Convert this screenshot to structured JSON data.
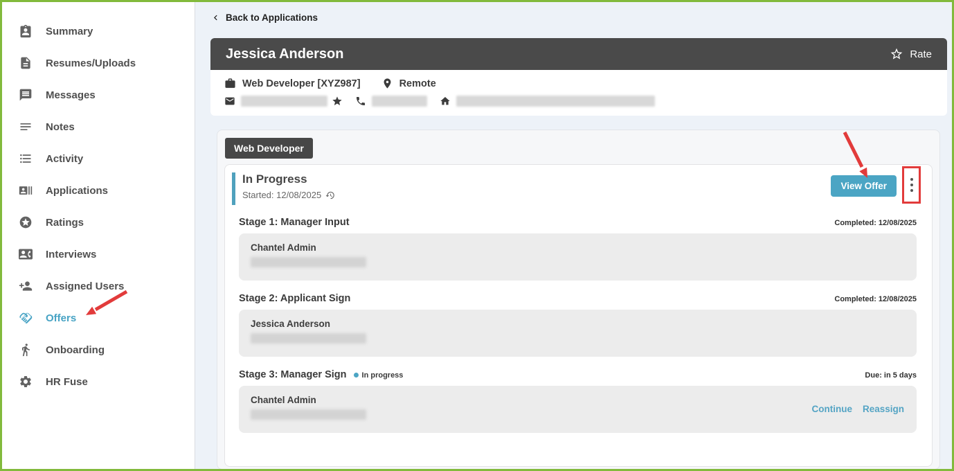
{
  "colors": {
    "accent": "#4BA5C4",
    "accent_text": "#47A3C4",
    "annotation_red": "#E23B3B",
    "header_dark": "#4A4A4A",
    "tab_dark": "#474747",
    "page_bg": "#EDF2F8",
    "frame_border": "#82BA3C"
  },
  "sidebar": {
    "items": [
      {
        "label": "Summary",
        "icon": "summary-icon",
        "active": false
      },
      {
        "label": "Resumes/Uploads",
        "icon": "resumes-icon",
        "active": false
      },
      {
        "label": "Messages",
        "icon": "messages-icon",
        "active": false
      },
      {
        "label": "Notes",
        "icon": "notes-icon",
        "active": false
      },
      {
        "label": "Activity",
        "icon": "activity-icon",
        "active": false
      },
      {
        "label": "Applications",
        "icon": "applications-icon",
        "active": false
      },
      {
        "label": "Ratings",
        "icon": "ratings-icon",
        "active": false
      },
      {
        "label": "Interviews",
        "icon": "interviews-icon",
        "active": false
      },
      {
        "label": "Assigned Users",
        "icon": "assigned-users-icon",
        "active": false
      },
      {
        "label": "Offers",
        "icon": "offers-handshake-icon",
        "active": true
      },
      {
        "label": "Onboarding",
        "icon": "onboarding-icon",
        "active": false
      },
      {
        "label": "HR Fuse",
        "icon": "gear-icon",
        "active": false
      }
    ]
  },
  "topbar": {
    "back_label": "Back to Applications"
  },
  "candidate": {
    "name": "Jessica Anderson",
    "rate_label": "Rate",
    "job": "Web Developer [XYZ987]",
    "location": "Remote"
  },
  "offer": {
    "tab_label": "Web Developer",
    "status_title": "In Progress",
    "started_label": "Started: 12/08/2025",
    "view_offer_label": "View Offer",
    "stages": [
      {
        "title": "Stage 1: Manager Input",
        "status": "",
        "meta": "Completed: 12/08/2025",
        "person": "Chantel Admin",
        "links": []
      },
      {
        "title": "Stage 2: Applicant Sign",
        "status": "",
        "meta": "Completed: 12/08/2025",
        "person": "Jessica Anderson",
        "links": []
      },
      {
        "title": "Stage 3: Manager Sign",
        "status": "In progress",
        "meta": "Due: in 5 days",
        "person": "Chantel Admin",
        "links": [
          "Continue",
          "Reassign"
        ]
      }
    ]
  }
}
